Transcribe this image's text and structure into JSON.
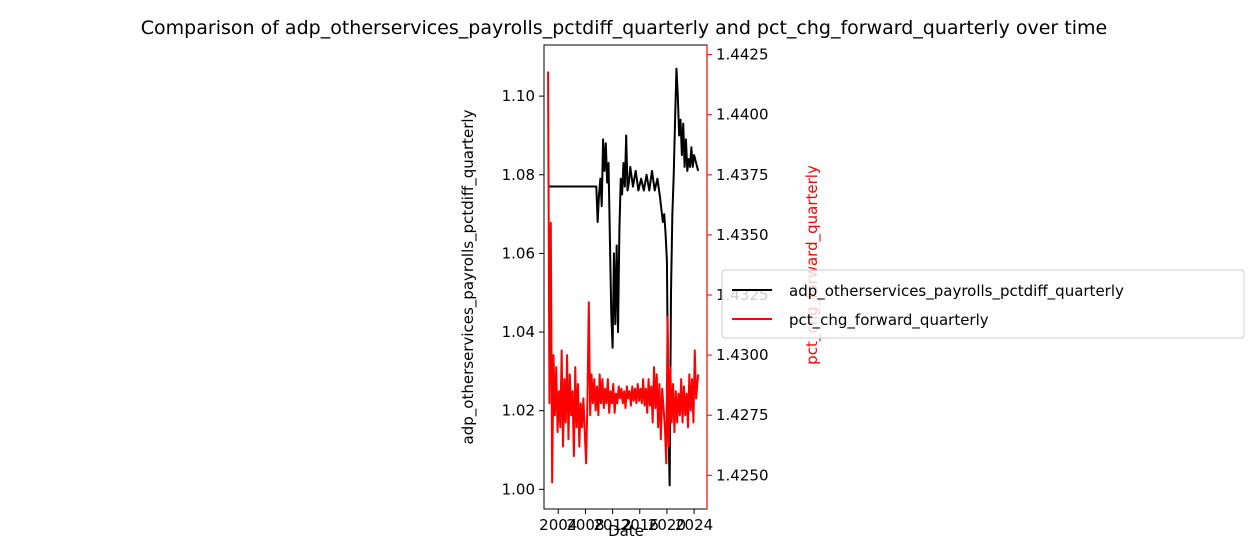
{
  "chart_data": {
    "type": "line",
    "title": "Comparison of adp_otherservices_payrolls_pctdiff_quarterly and pct_chg_forward_quarterly over time",
    "xlabel": "Date",
    "ylabel_left": "adp_otherservices_payrolls_pctdiff_quarterly",
    "ylabel_right": "pct_chg_forward_quarterly",
    "x_ticks": [
      "2004",
      "2008",
      "2012",
      "2016",
      "2020",
      "2024"
    ],
    "x_tick_values": [
      2004,
      2008,
      2012,
      2016,
      2020,
      2024
    ],
    "xlim": [
      2001.9,
      2025.9
    ],
    "y_left_ticks": [
      "1.00",
      "1.02",
      "1.04",
      "1.06",
      "1.08",
      "1.10"
    ],
    "y_left_tick_values": [
      1.0,
      1.02,
      1.04,
      1.06,
      1.08,
      1.1
    ],
    "ylim_left": [
      0.995,
      1.113
    ],
    "y_right_ticks": [
      "1.4250",
      "1.4275",
      "1.4300",
      "1.4325",
      "1.4350",
      "1.4375",
      "1.4400",
      "1.4425"
    ],
    "y_right_tick_values": [
      1.425,
      1.4275,
      1.43,
      1.4325,
      1.435,
      1.4375,
      1.44,
      1.4425
    ],
    "ylim_right": [
      1.4236,
      1.4429
    ],
    "legend_position": "right-outside",
    "series": [
      {
        "name": "adp_otherservices_payrolls_pctdiff_quarterly",
        "color": "#000000",
        "axis": "left",
        "points": [
          [
            2002.6,
            1.077
          ],
          [
            2004.0,
            1.077
          ],
          [
            2006.0,
            1.077
          ],
          [
            2008.0,
            1.077
          ],
          [
            2009.6,
            1.077
          ],
          [
            2009.8,
            1.068
          ],
          [
            2010.0,
            1.075
          ],
          [
            2010.2,
            1.079
          ],
          [
            2010.4,
            1.072
          ],
          [
            2010.6,
            1.089
          ],
          [
            2010.8,
            1.081
          ],
          [
            2011.0,
            1.088
          ],
          [
            2011.2,
            1.078
          ],
          [
            2011.4,
            1.083
          ],
          [
            2011.6,
            1.064
          ],
          [
            2011.8,
            1.045
          ],
          [
            2012.0,
            1.036
          ],
          [
            2012.2,
            1.06
          ],
          [
            2012.4,
            1.042
          ],
          [
            2012.6,
            1.062
          ],
          [
            2012.8,
            1.04
          ],
          [
            2013.0,
            1.066
          ],
          [
            2013.2,
            1.079
          ],
          [
            2013.4,
            1.075
          ],
          [
            2013.6,
            1.083
          ],
          [
            2013.8,
            1.077
          ],
          [
            2014.0,
            1.09
          ],
          [
            2014.2,
            1.076
          ],
          [
            2014.4,
            1.078
          ],
          [
            2014.6,
            1.082
          ],
          [
            2015.0,
            1.077
          ],
          [
            2015.4,
            1.081
          ],
          [
            2015.8,
            1.076
          ],
          [
            2016.2,
            1.079
          ],
          [
            2016.6,
            1.076
          ],
          [
            2017.0,
            1.08
          ],
          [
            2017.4,
            1.076
          ],
          [
            2017.8,
            1.081
          ],
          [
            2018.2,
            1.076
          ],
          [
            2018.6,
            1.079
          ],
          [
            2019.0,
            1.074
          ],
          [
            2019.4,
            1.068
          ],
          [
            2019.6,
            1.07
          ],
          [
            2019.8,
            1.065
          ],
          [
            2020.0,
            1.058
          ],
          [
            2020.2,
            1.018
          ],
          [
            2020.4,
            1.001
          ],
          [
            2020.6,
            1.05
          ],
          [
            2020.8,
            1.07
          ],
          [
            2021.0,
            1.08
          ],
          [
            2021.2,
            1.094
          ],
          [
            2021.4,
            1.107
          ],
          [
            2021.6,
            1.1
          ],
          [
            2021.8,
            1.09
          ],
          [
            2022.0,
            1.094
          ],
          [
            2022.2,
            1.085
          ],
          [
            2022.4,
            1.093
          ],
          [
            2022.6,
            1.082
          ],
          [
            2022.8,
            1.089
          ],
          [
            2023.0,
            1.081
          ],
          [
            2023.2,
            1.084
          ],
          [
            2023.4,
            1.082
          ],
          [
            2023.6,
            1.087
          ],
          [
            2023.8,
            1.082
          ],
          [
            2024.0,
            1.085
          ],
          [
            2024.3,
            1.083
          ],
          [
            2024.6,
            1.081
          ]
        ]
      },
      {
        "name": "pct_chg_forward_quarterly",
        "color": "#ff0000",
        "axis": "right",
        "points": [
          [
            2002.5,
            1.4418
          ],
          [
            2002.7,
            1.428
          ],
          [
            2002.9,
            1.4355
          ],
          [
            2003.1,
            1.4247
          ],
          [
            2003.3,
            1.43
          ],
          [
            2003.5,
            1.4275
          ],
          [
            2003.7,
            1.4295
          ],
          [
            2003.9,
            1.4268
          ],
          [
            2004.1,
            1.4285
          ],
          [
            2004.3,
            1.427
          ],
          [
            2004.5,
            1.4302
          ],
          [
            2004.7,
            1.4262
          ],
          [
            2004.9,
            1.429
          ],
          [
            2005.1,
            1.4272
          ],
          [
            2005.3,
            1.43
          ],
          [
            2005.5,
            1.4265
          ],
          [
            2005.7,
            1.4292
          ],
          [
            2005.9,
            1.4275
          ],
          [
            2006.1,
            1.4285
          ],
          [
            2006.3,
            1.4258
          ],
          [
            2006.5,
            1.4295
          ],
          [
            2006.7,
            1.427
          ],
          [
            2006.9,
            1.4288
          ],
          [
            2007.1,
            1.4262
          ],
          [
            2007.3,
            1.428
          ],
          [
            2007.5,
            1.427
          ],
          [
            2007.7,
            1.4282
          ],
          [
            2007.9,
            1.4268
          ],
          [
            2008.1,
            1.4255
          ],
          [
            2008.3,
            1.4282
          ],
          [
            2008.5,
            1.4322
          ],
          [
            2008.7,
            1.4275
          ],
          [
            2008.9,
            1.4292
          ],
          [
            2009.1,
            1.428
          ],
          [
            2009.3,
            1.429
          ],
          [
            2009.5,
            1.4277
          ],
          [
            2009.7,
            1.4287
          ],
          [
            2009.9,
            1.4275
          ],
          [
            2010.1,
            1.4292
          ],
          [
            2010.3,
            1.428
          ],
          [
            2010.5,
            1.429
          ],
          [
            2010.7,
            1.4278
          ],
          [
            2010.9,
            1.4286
          ],
          [
            2011.1,
            1.428
          ],
          [
            2011.3,
            1.429
          ],
          [
            2011.5,
            1.4276
          ],
          [
            2011.7,
            1.4285
          ],
          [
            2011.9,
            1.428
          ],
          [
            2012.1,
            1.4288
          ],
          [
            2012.3,
            1.4276
          ],
          [
            2012.5,
            1.4284
          ],
          [
            2012.7,
            1.428
          ],
          [
            2012.9,
            1.4287
          ],
          [
            2013.1,
            1.4282
          ],
          [
            2013.3,
            1.4286
          ],
          [
            2013.5,
            1.428
          ],
          [
            2013.7,
            1.4285
          ],
          [
            2013.9,
            1.4278
          ],
          [
            2014.1,
            1.4287
          ],
          [
            2014.3,
            1.4282
          ],
          [
            2014.5,
            1.4285
          ],
          [
            2014.7,
            1.4279
          ],
          [
            2014.9,
            1.4287
          ],
          [
            2015.1,
            1.4281
          ],
          [
            2015.3,
            1.4286
          ],
          [
            2015.5,
            1.428
          ],
          [
            2015.7,
            1.4288
          ],
          [
            2015.9,
            1.4281
          ],
          [
            2016.1,
            1.4286
          ],
          [
            2016.3,
            1.428
          ],
          [
            2016.5,
            1.429
          ],
          [
            2016.7,
            1.4279
          ],
          [
            2016.9,
            1.4286
          ],
          [
            2017.1,
            1.4276
          ],
          [
            2017.3,
            1.429
          ],
          [
            2017.5,
            1.4279
          ],
          [
            2017.7,
            1.4287
          ],
          [
            2017.9,
            1.4272
          ],
          [
            2018.1,
            1.4295
          ],
          [
            2018.3,
            1.4278
          ],
          [
            2018.5,
            1.4292
          ],
          [
            2018.7,
            1.427
          ],
          [
            2018.9,
            1.4288
          ],
          [
            2019.1,
            1.4265
          ],
          [
            2019.3,
            1.4286
          ],
          [
            2019.5,
            1.4278
          ],
          [
            2019.7,
            1.427
          ],
          [
            2019.9,
            1.4255
          ],
          [
            2020.1,
            1.4316
          ],
          [
            2020.3,
            1.4262
          ],
          [
            2020.5,
            1.4295
          ],
          [
            2020.7,
            1.4272
          ],
          [
            2020.9,
            1.4288
          ],
          [
            2021.1,
            1.4268
          ],
          [
            2021.3,
            1.4285
          ],
          [
            2021.5,
            1.4272
          ],
          [
            2021.7,
            1.4284
          ],
          [
            2021.9,
            1.4275
          ],
          [
            2022.1,
            1.429
          ],
          [
            2022.3,
            1.4272
          ],
          [
            2022.5,
            1.4287
          ],
          [
            2022.7,
            1.4275
          ],
          [
            2022.9,
            1.4284
          ],
          [
            2023.1,
            1.427
          ],
          [
            2023.3,
            1.4292
          ],
          [
            2023.5,
            1.4277
          ],
          [
            2023.7,
            1.429
          ],
          [
            2023.9,
            1.4272
          ],
          [
            2024.1,
            1.4302
          ],
          [
            2024.3,
            1.4282
          ],
          [
            2024.6,
            1.4292
          ]
        ]
      }
    ]
  }
}
